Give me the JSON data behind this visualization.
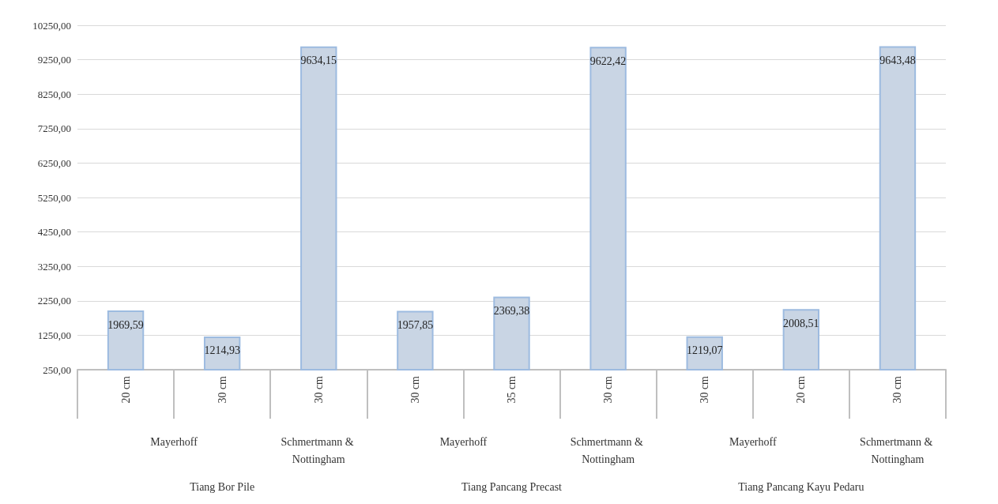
{
  "chart_data": {
    "type": "bar",
    "categories": [
      "20 cm",
      "30 cm",
      "30 cm",
      "30 cm",
      "35 cm",
      "30 cm",
      "30 cm",
      "20 cm",
      "30 cm"
    ],
    "values": [
      1969.59,
      1214.93,
      9634.15,
      1957.85,
      2369.38,
      9622.42,
      1219.07,
      2008.51,
      9643.48
    ],
    "value_labels": [
      "1969,59",
      "1214,93",
      "9634,15",
      "1957,85",
      "2369,38",
      "9622,42",
      "1219,07",
      "2008,51",
      "9643,48"
    ],
    "color": "#c9d5e4",
    "ylim": [
      250,
      10250
    ],
    "yticks": [
      {
        "value": 250,
        "label": "250,00"
      },
      {
        "value": 1250,
        "label": "1250,00"
      },
      {
        "value": 2250,
        "label": "2250,00"
      },
      {
        "value": 3250,
        "label": "3250,00"
      },
      {
        "value": 4250,
        "label": "4250,00"
      },
      {
        "value": 5250,
        "label": "5250,00"
      },
      {
        "value": 6250,
        "label": "6250,00"
      },
      {
        "value": 7250,
        "label": "7250,00"
      },
      {
        "value": 8250,
        "label": "8250,00"
      },
      {
        "value": 9250,
        "label": "9250,00"
      },
      {
        "value": 10250,
        "label": "10250,00"
      }
    ],
    "grid": "y",
    "annotations": [
      "Mayerhoff",
      "Schmertmann & Nottingham",
      "Mayerhoff",
      "Schmertmann & Nottingham",
      "Mayerhoff",
      "Schmertmann & Nottingham",
      "Tiang Bor Pile",
      "Tiang Pancang Precast",
      "Tiang Pancang Kayu Pedaru"
    ]
  }
}
